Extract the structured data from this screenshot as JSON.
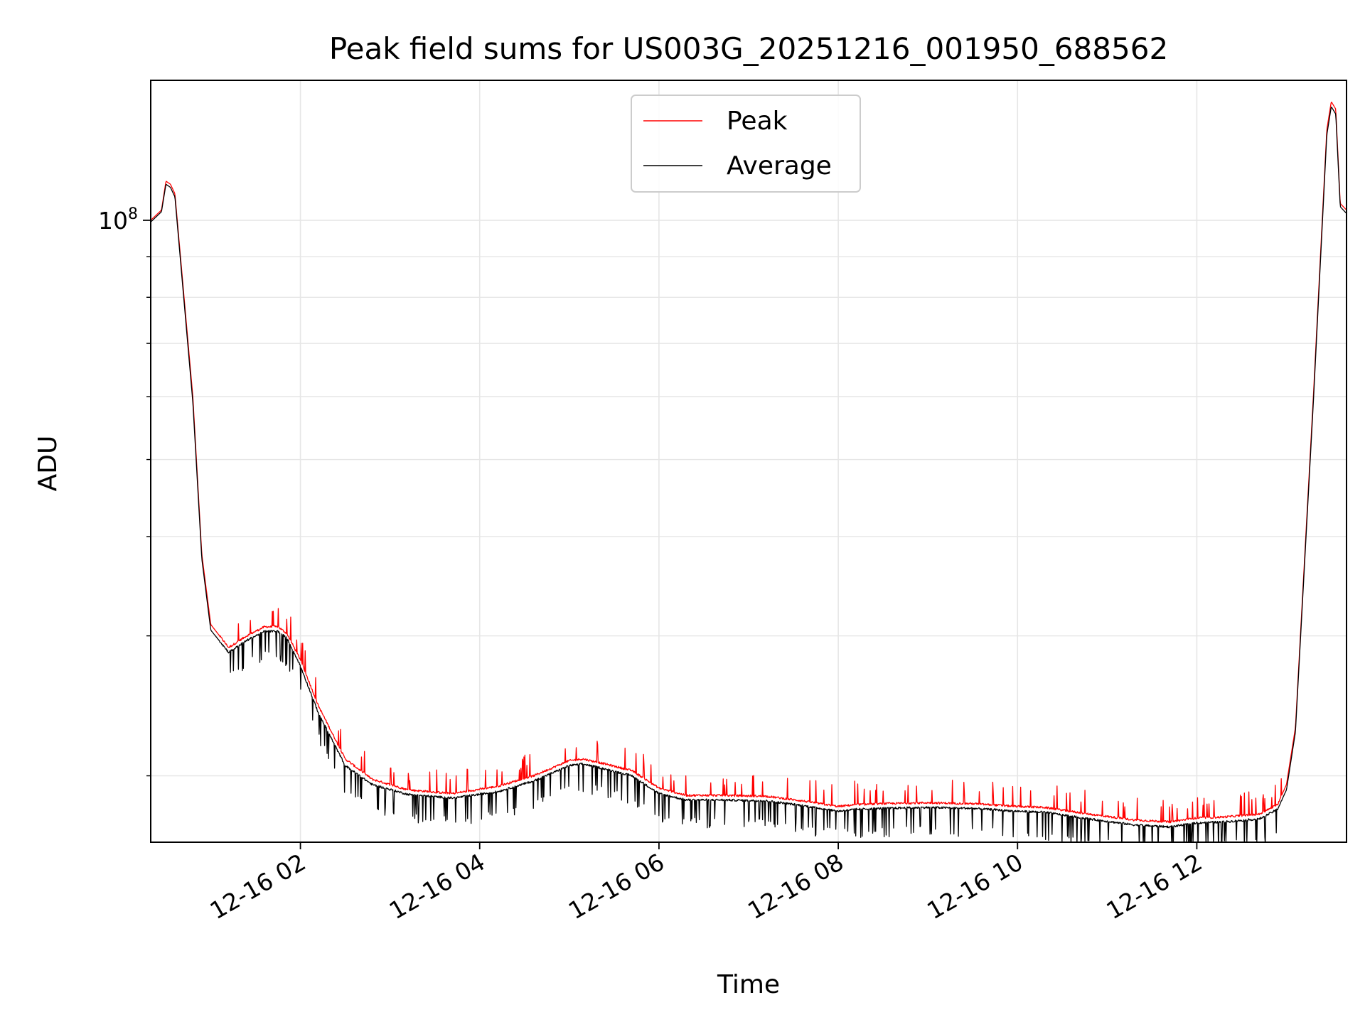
{
  "chart_data": {
    "type": "line",
    "title": "Peak field sums for US003G_20251216_001950_688562",
    "xlabel": "Time",
    "ylabel": "ADU",
    "yscale": "log",
    "ylim": [
      16500000,
      150000000
    ],
    "xlim_hours": [
      0.33,
      13.67
    ],
    "x_ticks": [
      {
        "hour": 2,
        "label": "12-16 02"
      },
      {
        "hour": 4,
        "label": "12-16 04"
      },
      {
        "hour": 6,
        "label": "12-16 06"
      },
      {
        "hour": 8,
        "label": "12-16 08"
      },
      {
        "hour": 10,
        "label": "12-16 10"
      },
      {
        "hour": 12,
        "label": "12-16 12"
      }
    ],
    "y_major_ticks": [
      {
        "value": 100000000,
        "base": "10",
        "exp": "8"
      }
    ],
    "y_minor_ticks": [
      20000000,
      30000000,
      40000000,
      50000000,
      60000000,
      70000000,
      80000000,
      90000000
    ],
    "grid": true,
    "legend_position": "upper-center",
    "series": [
      {
        "name": "Peak",
        "color": "#ff0000",
        "x_hours": [
          0.33,
          0.45,
          0.5,
          0.55,
          0.6,
          0.8,
          0.9,
          1.0,
          1.2,
          1.4,
          1.6,
          1.75,
          1.85,
          2.0,
          2.2,
          2.5,
          2.8,
          3.2,
          3.7,
          4.2,
          4.6,
          5.0,
          5.15,
          5.4,
          5.7,
          6.0,
          6.3,
          6.7,
          7.2,
          7.6,
          8.0,
          8.2,
          8.5,
          9.0,
          9.5,
          10.0,
          10.3,
          10.8,
          11.3,
          11.7,
          12.0,
          12.3,
          12.7,
          12.9,
          13.0,
          13.1,
          13.3,
          13.45,
          13.5,
          13.55,
          13.6,
          13.67
        ],
        "values": [
          100000000,
          103000000,
          112000000,
          111000000,
          108000000,
          60000000,
          38000000,
          31000000,
          29000000,
          30000000,
          30800000,
          30800000,
          30200000,
          28000000,
          24500000,
          21000000,
          19800000,
          19200000,
          19000000,
          19400000,
          20000000,
          20900000,
          21000000,
          20700000,
          20300000,
          19300000,
          18900000,
          18900000,
          18850000,
          18600000,
          18300000,
          18400000,
          18450000,
          18500000,
          18450000,
          18300000,
          18250000,
          17900000,
          17600000,
          17500000,
          17700000,
          17750000,
          17900000,
          18400000,
          19500000,
          23000000,
          60000000,
          130000000,
          141000000,
          138000000,
          105000000,
          103000000
        ]
      },
      {
        "name": "Average",
        "color": "#000000",
        "x_hours": [
          0.33,
          0.45,
          0.5,
          0.55,
          0.6,
          0.8,
          0.9,
          1.0,
          1.2,
          1.4,
          1.6,
          1.75,
          1.85,
          2.0,
          2.2,
          2.5,
          2.8,
          3.2,
          3.7,
          4.2,
          4.6,
          5.0,
          5.15,
          5.4,
          5.7,
          6.0,
          6.3,
          6.7,
          7.2,
          7.6,
          8.0,
          8.2,
          8.5,
          9.0,
          9.5,
          10.0,
          10.3,
          10.8,
          11.3,
          11.7,
          12.0,
          12.3,
          12.7,
          12.9,
          13.0,
          13.1,
          13.3,
          13.45,
          13.5,
          13.55,
          13.6,
          13.67
        ],
        "values": [
          99500000,
          102500000,
          111000000,
          110000000,
          107000000,
          59000000,
          37500000,
          30500000,
          28600000,
          29600000,
          30400000,
          30400000,
          29800000,
          27500000,
          24000000,
          20600000,
          19500000,
          18950000,
          18750000,
          19100000,
          19700000,
          20600000,
          20700000,
          20400000,
          20000000,
          19000000,
          18650000,
          18650000,
          18600000,
          18350000,
          18050000,
          18150000,
          18200000,
          18250000,
          18200000,
          18050000,
          18000000,
          17650000,
          17350000,
          17250000,
          17450000,
          17500000,
          17650000,
          18150000,
          19200000,
          22700000,
          59000000,
          128000000,
          139000000,
          136000000,
          104000000,
          102000000
        ]
      }
    ]
  }
}
